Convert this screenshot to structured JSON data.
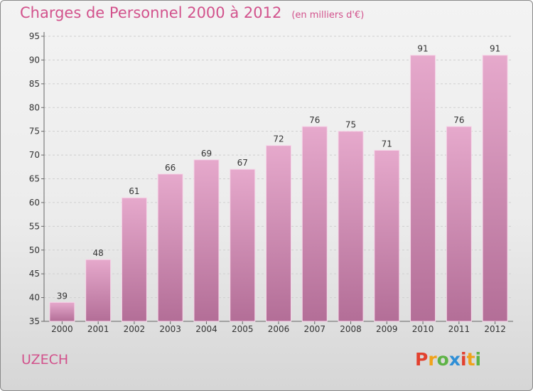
{
  "title": "Charges de Personnel 2000 à 2012",
  "subtitle": "(en milliers d'€)",
  "location_label": "UZECH",
  "logo_text": "Proxiti",
  "colors": {
    "bar_top": "#e6a9cc",
    "bar_bottom": "#b36e97",
    "title": "#d2528c"
  },
  "chart_data": {
    "type": "bar",
    "categories": [
      "2000",
      "2001",
      "2002",
      "2003",
      "2004",
      "2005",
      "2006",
      "2007",
      "2008",
      "2009",
      "2010",
      "2011",
      "2012"
    ],
    "values": [
      39,
      48,
      61,
      66,
      69,
      67,
      72,
      76,
      75,
      71,
      91,
      76,
      91
    ],
    "ylim": [
      35,
      95
    ],
    "yticks": [
      35,
      40,
      45,
      50,
      55,
      60,
      65,
      70,
      75,
      80,
      85,
      90,
      95
    ],
    "grid": true,
    "legend": "none"
  }
}
